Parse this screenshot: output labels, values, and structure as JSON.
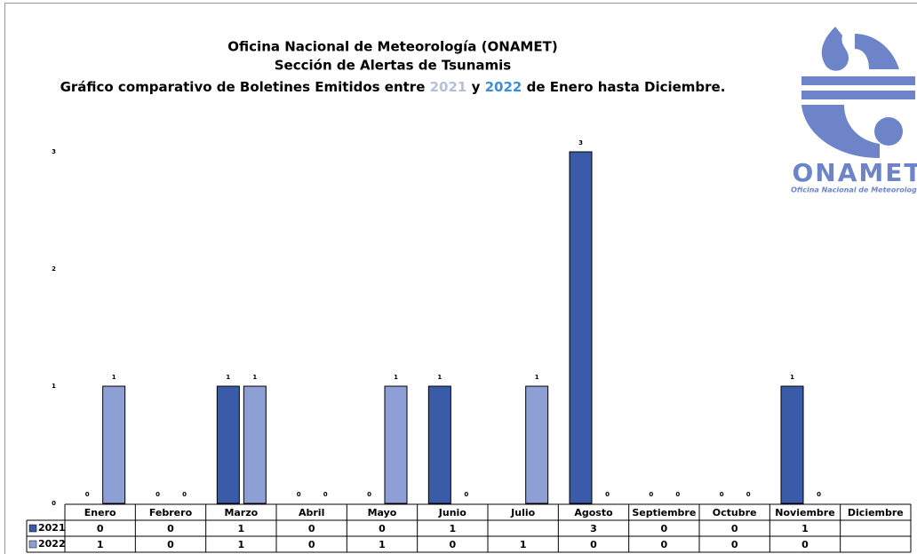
{
  "chart_data": {
    "type": "bar",
    "title": [
      "Oficina Nacional de Meteorología (ONAMET)",
      "Sección de Alertas de Tsunamis"
    ],
    "subtitle_parts": [
      "Gráfico comparativo de Boletines Emitidos entre",
      "y",
      "de Enero hasta Diciembre."
    ],
    "logo": {
      "name": "ONAMET",
      "tagline": "Oficina Nacional de Meteorología"
    },
    "categories": [
      "Enero",
      "Febrero",
      "Marzo",
      "Abril",
      "Mayo",
      "Junio",
      "Julio",
      "Agosto",
      "Septiembre",
      "Octubre",
      "Noviembre",
      "Diciembre"
    ],
    "series": [
      {
        "name": "2021",
        "color": "#3a5ba8",
        "values": [
          0,
          0,
          1,
          0,
          0,
          1,
          null,
          3,
          0,
          0,
          1,
          null
        ]
      },
      {
        "name": "2022",
        "color": "#8e9fd6",
        "values": [
          1,
          0,
          1,
          0,
          1,
          0,
          1,
          0,
          0,
          0,
          0,
          null
        ]
      }
    ],
    "ylim": [
      0,
      3
    ],
    "yticks": [
      0,
      1,
      2,
      3
    ],
    "grid": false
  }
}
